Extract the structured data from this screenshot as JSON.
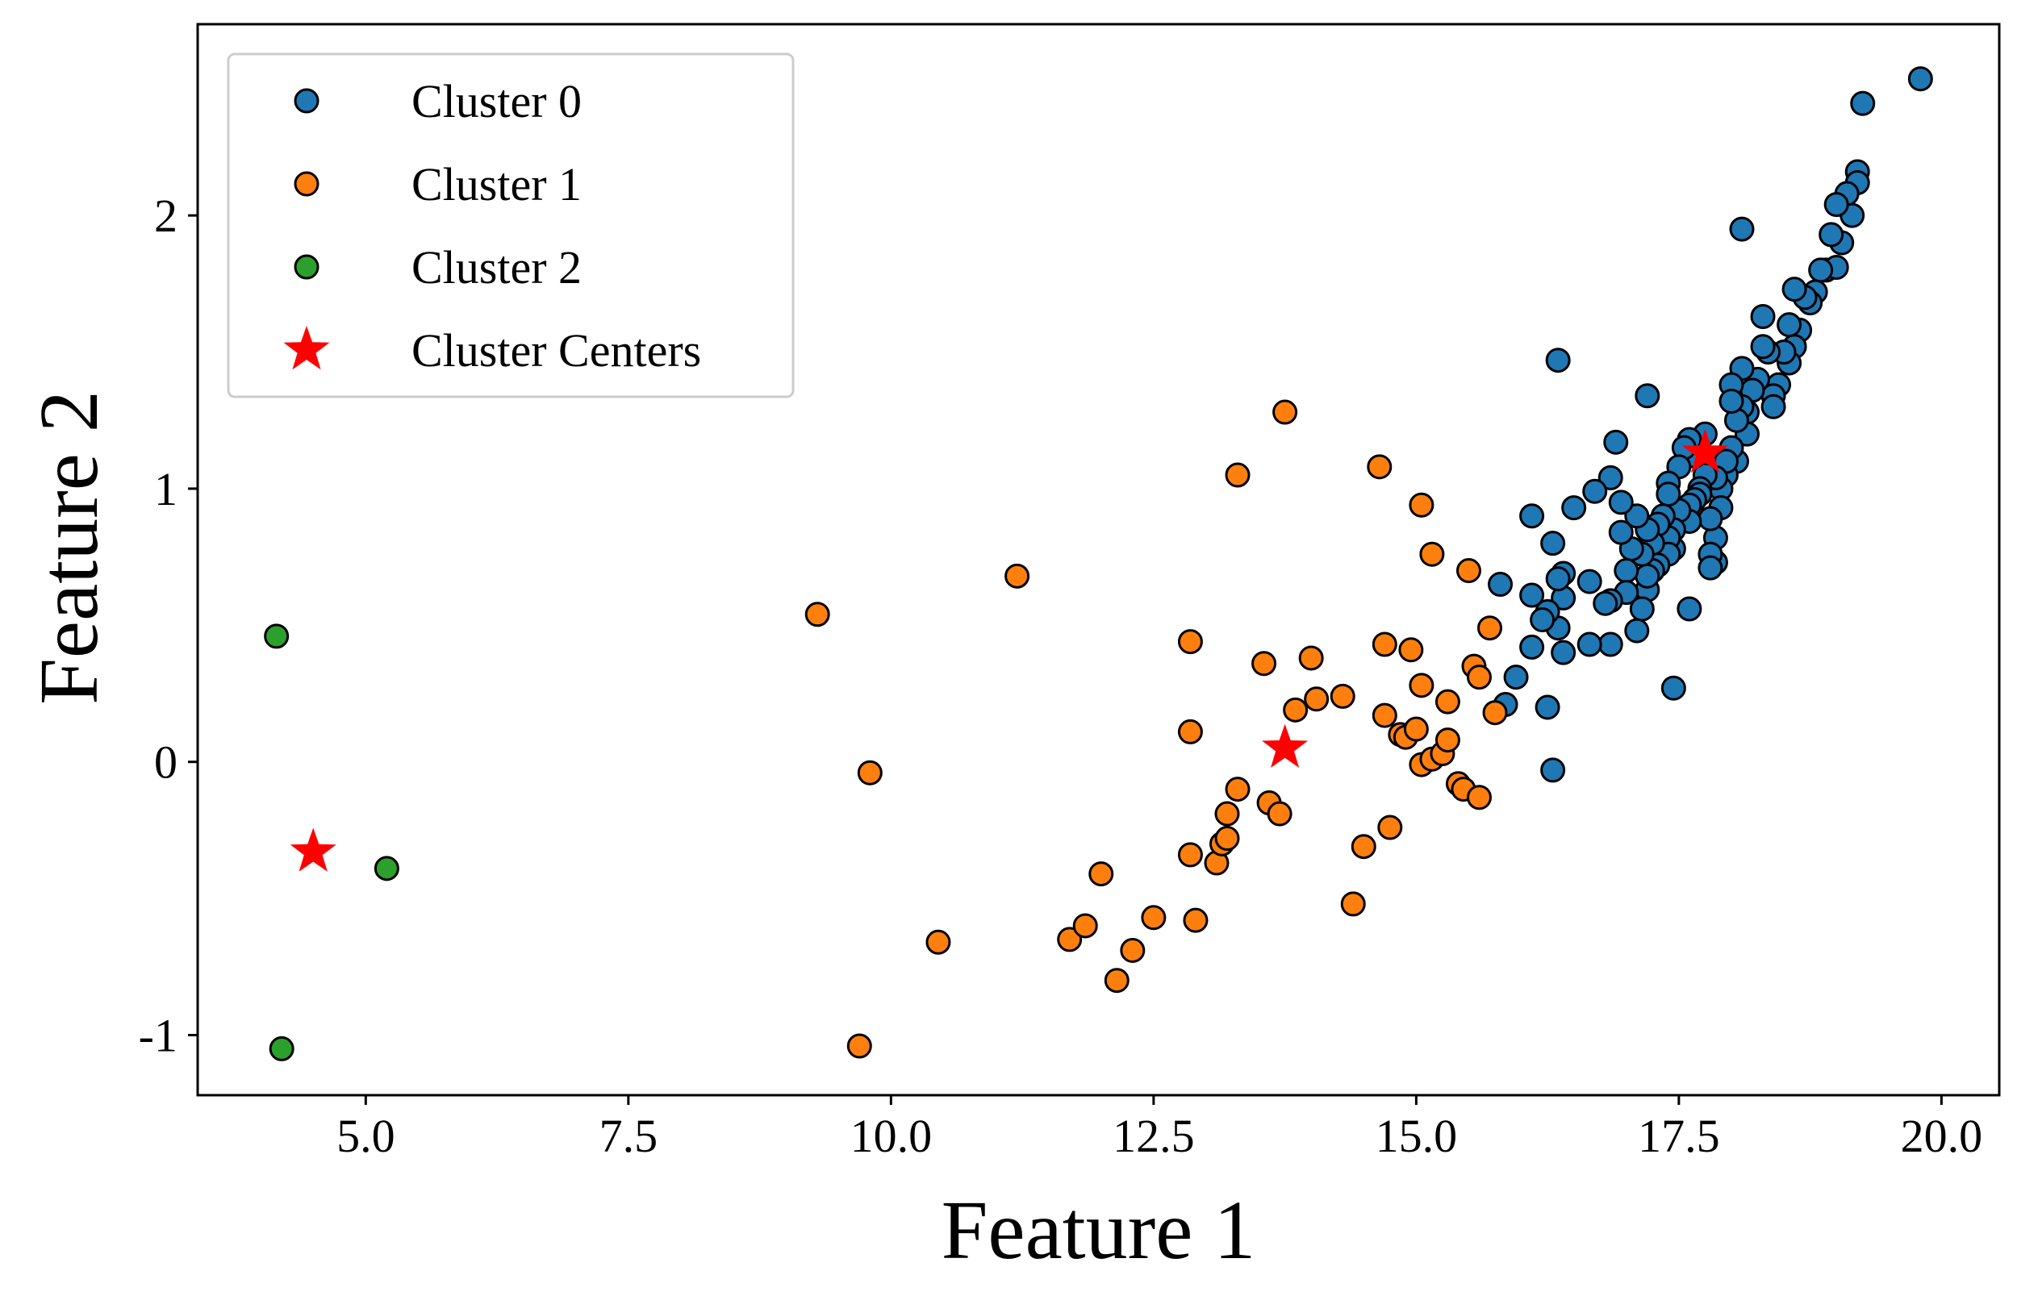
{
  "chart_data": {
    "type": "scatter",
    "title": "",
    "xlabel": "Feature 1",
    "ylabel": "Feature 2",
    "xlim": [
      3.4,
      20.55
    ],
    "ylim": [
      -1.22,
      2.7
    ],
    "xticks": [
      5.0,
      7.5,
      10.0,
      12.5,
      15.0,
      17.5,
      20.0
    ],
    "xtick_labels": [
      "5.0",
      "7.5",
      "10.0",
      "12.5",
      "15.0",
      "17.5",
      "20.0"
    ],
    "yticks": [
      -1,
      0,
      1,
      2
    ],
    "ytick_labels": [
      "-1",
      "0",
      "1",
      "2"
    ],
    "grid": false,
    "legend_position": "top-left",
    "series": [
      {
        "name": "Cluster 0",
        "color": "#1f77b4",
        "marker": "circle",
        "points": [
          [
            19.8,
            2.5
          ],
          [
            19.25,
            2.41
          ],
          [
            19.2,
            2.16
          ],
          [
            19.2,
            2.12
          ],
          [
            19.15,
            2.0
          ],
          [
            19.1,
            2.08
          ],
          [
            19.05,
            1.9
          ],
          [
            19.0,
            2.04
          ],
          [
            18.95,
            1.93
          ],
          [
            18.9,
            1.8
          ],
          [
            19.0,
            1.81
          ],
          [
            18.85,
            1.8
          ],
          [
            18.8,
            1.72
          ],
          [
            18.75,
            1.68
          ],
          [
            18.7,
            1.7
          ],
          [
            18.6,
            1.73
          ],
          [
            18.65,
            1.58
          ],
          [
            18.6,
            1.52
          ],
          [
            18.55,
            1.6
          ],
          [
            18.55,
            1.46
          ],
          [
            18.5,
            1.5
          ],
          [
            18.45,
            1.38
          ],
          [
            18.4,
            1.34
          ],
          [
            18.4,
            1.3
          ],
          [
            18.35,
            1.5
          ],
          [
            18.3,
            1.52
          ],
          [
            18.3,
            1.63
          ],
          [
            18.25,
            1.4
          ],
          [
            18.2,
            1.36
          ],
          [
            18.15,
            1.28
          ],
          [
            18.15,
            1.2
          ],
          [
            18.1,
            1.44
          ],
          [
            18.1,
            1.3
          ],
          [
            18.05,
            1.25
          ],
          [
            18.05,
            1.1
          ],
          [
            18.1,
            1.95
          ],
          [
            18.0,
            1.38
          ],
          [
            18.0,
            1.32
          ],
          [
            18.0,
            1.15
          ],
          [
            17.95,
            1.05
          ],
          [
            17.95,
            1.1
          ],
          [
            17.9,
            1.0
          ],
          [
            17.9,
            0.93
          ],
          [
            17.85,
            1.04
          ],
          [
            17.85,
            0.82
          ],
          [
            17.85,
            0.73
          ],
          [
            17.8,
            0.89
          ],
          [
            17.8,
            0.76
          ],
          [
            17.8,
            0.71
          ],
          [
            17.75,
            1.2
          ],
          [
            17.75,
            1.05
          ],
          [
            17.7,
            1.0
          ],
          [
            17.7,
            0.98
          ],
          [
            17.65,
            1.12
          ],
          [
            17.65,
            0.96
          ],
          [
            17.6,
            1.18
          ],
          [
            17.6,
            0.94
          ],
          [
            17.6,
            0.88
          ],
          [
            17.6,
            0.56
          ],
          [
            17.55,
            1.15
          ],
          [
            17.5,
            1.08
          ],
          [
            17.5,
            0.92
          ],
          [
            17.45,
            0.78
          ],
          [
            17.45,
            0.85
          ],
          [
            17.4,
            1.02
          ],
          [
            17.4,
            0.98
          ],
          [
            17.4,
            0.82
          ],
          [
            17.4,
            0.76
          ],
          [
            17.35,
            0.9
          ],
          [
            17.3,
            0.87
          ],
          [
            17.3,
            0.72
          ],
          [
            17.25,
            0.8
          ],
          [
            17.25,
            0.7
          ],
          [
            17.2,
            0.85
          ],
          [
            17.2,
            0.63
          ],
          [
            17.2,
            0.68
          ],
          [
            17.2,
            1.34
          ],
          [
            17.15,
            0.76
          ],
          [
            17.15,
            0.56
          ],
          [
            17.1,
            0.9
          ],
          [
            17.1,
            0.48
          ],
          [
            17.05,
            0.78
          ],
          [
            17.0,
            0.7
          ],
          [
            17.0,
            0.62
          ],
          [
            16.95,
            0.84
          ],
          [
            16.95,
            0.95
          ],
          [
            16.9,
            1.17
          ],
          [
            16.85,
            0.59
          ],
          [
            16.85,
            0.43
          ],
          [
            16.8,
            0.58
          ],
          [
            16.85,
            1.04
          ],
          [
            16.7,
            0.99
          ],
          [
            16.65,
            0.66
          ],
          [
            16.65,
            0.43
          ],
          [
            16.5,
            0.93
          ],
          [
            16.4,
            0.6
          ],
          [
            16.4,
            0.69
          ],
          [
            16.4,
            0.4
          ],
          [
            16.35,
            0.67
          ],
          [
            16.35,
            0.49
          ],
          [
            16.35,
            1.47
          ],
          [
            16.3,
            0.8
          ],
          [
            16.25,
            0.55
          ],
          [
            16.2,
            0.52
          ],
          [
            16.1,
            0.9
          ],
          [
            16.1,
            0.61
          ],
          [
            16.1,
            0.42
          ],
          [
            16.25,
            0.2
          ],
          [
            15.95,
            0.31
          ],
          [
            15.85,
            0.21
          ],
          [
            15.8,
            0.65
          ],
          [
            16.3,
            -0.03
          ],
          [
            17.45,
            0.27
          ]
        ]
      },
      {
        "name": "Cluster 1",
        "color": "#ff7f0e",
        "marker": "circle",
        "points": [
          [
            9.3,
            0.54
          ],
          [
            11.2,
            0.68
          ],
          [
            9.8,
            -0.04
          ],
          [
            9.7,
            -1.04
          ],
          [
            10.45,
            -0.66
          ],
          [
            11.7,
            -0.65
          ],
          [
            11.85,
            -0.6
          ],
          [
            12.0,
            -0.41
          ],
          [
            12.15,
            -0.8
          ],
          [
            12.3,
            -0.69
          ],
          [
            12.5,
            -0.57
          ],
          [
            12.85,
            -0.34
          ],
          [
            12.9,
            -0.58
          ],
          [
            13.1,
            -0.37
          ],
          [
            13.15,
            -0.3
          ],
          [
            13.2,
            -0.28
          ],
          [
            13.2,
            -0.19
          ],
          [
            13.3,
            -0.1
          ],
          [
            13.6,
            -0.15
          ],
          [
            13.7,
            -0.19
          ],
          [
            12.85,
            0.11
          ],
          [
            12.85,
            0.44
          ],
          [
            13.3,
            1.05
          ],
          [
            13.55,
            0.36
          ],
          [
            13.75,
            1.28
          ],
          [
            13.85,
            0.19
          ],
          [
            14.0,
            0.38
          ],
          [
            14.05,
            0.23
          ],
          [
            14.3,
            0.24
          ],
          [
            14.4,
            -0.52
          ],
          [
            14.5,
            -0.31
          ],
          [
            14.65,
            1.08
          ],
          [
            14.7,
            0.17
          ],
          [
            14.7,
            0.43
          ],
          [
            14.75,
            -0.24
          ],
          [
            14.85,
            0.1
          ],
          [
            14.9,
            0.09
          ],
          [
            14.95,
            0.41
          ],
          [
            15.0,
            0.12
          ],
          [
            15.05,
            -0.01
          ],
          [
            15.05,
            0.28
          ],
          [
            15.05,
            0.94
          ],
          [
            15.15,
            0.76
          ],
          [
            15.15,
            0.01
          ],
          [
            15.25,
            0.03
          ],
          [
            15.3,
            0.08
          ],
          [
            15.3,
            0.22
          ],
          [
            15.4,
            -0.08
          ],
          [
            15.45,
            -0.1
          ],
          [
            15.5,
            0.7
          ],
          [
            15.55,
            0.35
          ],
          [
            15.6,
            0.31
          ],
          [
            15.6,
            -0.13
          ],
          [
            15.7,
            0.49
          ],
          [
            15.75,
            0.18
          ]
        ]
      },
      {
        "name": "Cluster 2",
        "color": "#2ca02c",
        "marker": "circle",
        "points": [
          [
            4.15,
            0.46
          ],
          [
            5.2,
            -0.39
          ],
          [
            4.2,
            -1.05
          ]
        ]
      },
      {
        "name": "Cluster Centers",
        "color": "#ff0000",
        "marker": "star",
        "points": [
          [
            17.75,
            1.13
          ],
          [
            13.75,
            0.05
          ],
          [
            4.5,
            -0.33
          ]
        ]
      }
    ]
  }
}
